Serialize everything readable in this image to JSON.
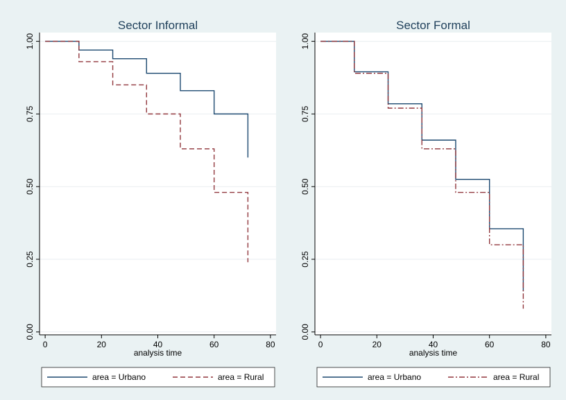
{
  "colors": {
    "background": "#eaf2f3",
    "plot_background": "#ffffff",
    "grid": "#e9eef0",
    "urbano": "#1a476f",
    "rural": "#90353b",
    "title": "#1e3f5a"
  },
  "chart_data": [
    {
      "type": "line",
      "title": "Sector Informal",
      "xlabel": "analysis time",
      "ylabel": "",
      "xlim": [
        -2,
        82
      ],
      "ylim": [
        -0.01,
        1.03
      ],
      "xticks": [
        0,
        20,
        40,
        60,
        80
      ],
      "xtick_labels": [
        "0",
        "20",
        "40",
        "60",
        "80"
      ],
      "yticks": [
        0,
        0.25,
        0.5,
        0.75,
        1
      ],
      "ytick_labels": [
        "0.00",
        "0.25",
        "0.50",
        "0.75",
        "1.00"
      ],
      "grid": true,
      "legend_position": "bottom",
      "series": [
        {
          "name": "area = Urbano",
          "style": "solid",
          "x": [
            0,
            12,
            24,
            36,
            48,
            60,
            72
          ],
          "y": [
            1.0,
            0.97,
            0.94,
            0.89,
            0.83,
            0.75,
            0.6
          ]
        },
        {
          "name": "area = Rural",
          "style": "dashed",
          "x": [
            0,
            12,
            24,
            36,
            48,
            60,
            72
          ],
          "y": [
            1.0,
            0.93,
            0.85,
            0.75,
            0.63,
            0.48,
            0.24
          ]
        }
      ]
    },
    {
      "type": "line",
      "title": "Sector Formal",
      "xlabel": "analysis time",
      "ylabel": "",
      "xlim": [
        -2,
        82
      ],
      "ylim": [
        -0.01,
        1.03
      ],
      "xticks": [
        0,
        20,
        40,
        60,
        80
      ],
      "xtick_labels": [
        "0",
        "20",
        "40",
        "60",
        "80"
      ],
      "yticks": [
        0,
        0.25,
        0.5,
        0.75,
        1
      ],
      "ytick_labels": [
        "0.00",
        "0.25",
        "0.50",
        "0.75",
        "1.00"
      ],
      "grid": true,
      "legend_position": "bottom",
      "series": [
        {
          "name": "area = Urbano",
          "style": "solid",
          "x": [
            0,
            12,
            24,
            36,
            48,
            60,
            72
          ],
          "y": [
            1.0,
            0.895,
            0.785,
            0.66,
            0.525,
            0.355,
            0.14
          ]
        },
        {
          "name": "area = Rural",
          "style": "dashdot",
          "x": [
            0,
            12,
            24,
            36,
            48,
            60,
            72
          ],
          "y": [
            1.0,
            0.89,
            0.77,
            0.63,
            0.48,
            0.3,
            0.08
          ]
        }
      ]
    }
  ]
}
